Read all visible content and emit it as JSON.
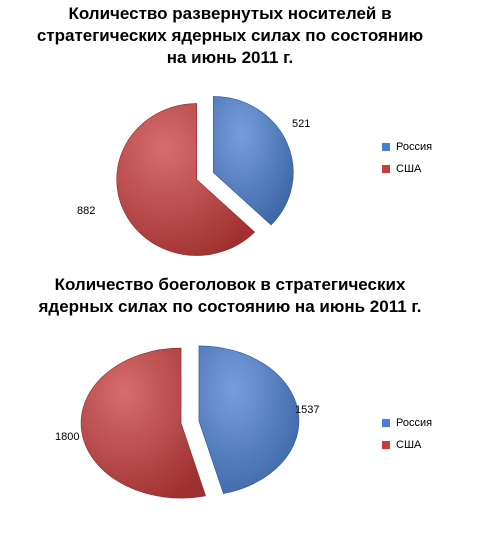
{
  "chart_data": [
    {
      "type": "pie",
      "title_lines": [
        "Количество развернутых носителей в",
        "стратегических ядерных силах по состоянию",
        "на июнь 2011 г."
      ],
      "categories": [
        "Россия",
        "США"
      ],
      "values": [
        521,
        882
      ],
      "value_labels": [
        "521",
        "882"
      ],
      "colors": [
        "#4a7ed0",
        "#c83c3c"
      ],
      "legend": "right",
      "exploded": true
    },
    {
      "type": "pie",
      "title_lines": [
        "Количество боеголовок в стратегических",
        "ядерных силах по состоянию на июнь 2011 г."
      ],
      "categories": [
        "Россия",
        "США"
      ],
      "values": [
        1537,
        1800
      ],
      "value_labels": [
        "1537",
        "1800"
      ],
      "colors": [
        "#4a7ed0",
        "#c83c3c"
      ],
      "legend": "right",
      "exploded": true
    }
  ]
}
